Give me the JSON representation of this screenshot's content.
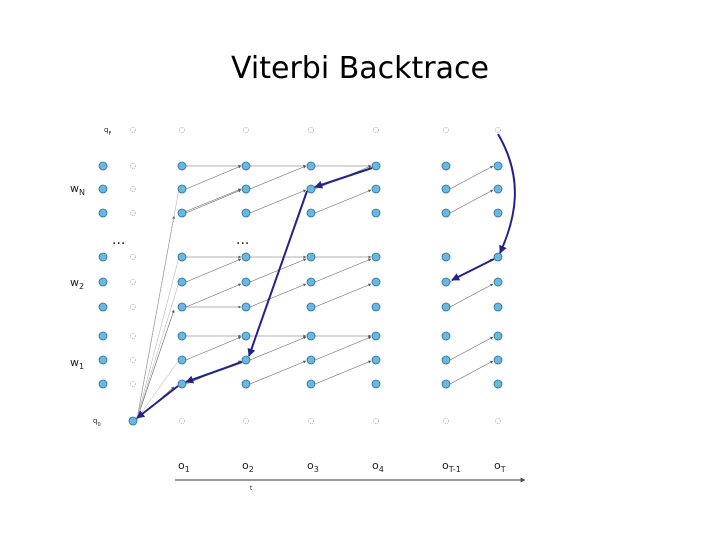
{
  "title": "Viterbi Backtrace",
  "state_labels": [
    {
      "base": "q",
      "sub": "F"
    },
    {
      "base": "w",
      "sub": "N"
    },
    {
      "base": "w",
      "sub": "2"
    },
    {
      "base": "w",
      "sub": "1"
    },
    {
      "base": "q",
      "sub": "0"
    }
  ],
  "ellipses": [
    "...",
    "..."
  ],
  "observations": [
    {
      "base": "o",
      "sub": "1"
    },
    {
      "base": "o",
      "sub": "2"
    },
    {
      "base": "o",
      "sub": "3"
    },
    {
      "base": "o",
      "sub": "4"
    },
    {
      "base": "o",
      "sub": "T-1"
    },
    {
      "base": "o",
      "sub": "T"
    }
  ],
  "axis_label": "t"
}
